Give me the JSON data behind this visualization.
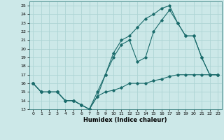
{
  "xlabel": "Humidex (Indice chaleur)",
  "xlim": [
    -0.5,
    23.5
  ],
  "ylim": [
    13,
    25.5
  ],
  "yticks": [
    13,
    14,
    15,
    16,
    17,
    18,
    19,
    20,
    21,
    22,
    23,
    24,
    25
  ],
  "xticks": [
    0,
    1,
    2,
    3,
    4,
    5,
    6,
    7,
    8,
    9,
    10,
    11,
    12,
    13,
    14,
    15,
    16,
    17,
    18,
    19,
    20,
    21,
    22,
    23
  ],
  "bg_color": "#cce8e8",
  "grid_color": "#aed4d4",
  "line_color": "#1a6b6b",
  "line1_x": [
    0,
    1,
    2,
    3,
    4,
    5,
    6,
    7,
    8,
    9,
    10,
    11,
    12,
    13,
    14,
    15,
    16,
    17,
    18,
    19,
    20,
    21,
    22,
    23
  ],
  "line1_y": [
    16,
    15,
    15,
    15,
    14,
    14,
    13.5,
    13,
    15,
    17,
    19.5,
    21,
    21.5,
    22.5,
    23.5,
    24,
    24.7,
    25,
    23,
    21.5,
    21.5,
    19,
    17,
    17
  ],
  "line2_x": [
    0,
    1,
    2,
    3,
    4,
    5,
    6,
    7,
    8,
    9,
    10,
    11,
    12,
    13,
    14,
    15,
    16,
    17,
    18,
    19,
    20,
    21,
    22,
    23
  ],
  "line2_y": [
    16,
    15,
    15,
    15,
    14,
    14,
    13.5,
    13,
    14.5,
    17,
    19,
    20.5,
    21,
    18.5,
    19,
    22,
    23.3,
    24.5,
    23,
    21.5,
    21.5,
    19,
    17,
    17
  ],
  "line3_x": [
    0,
    1,
    2,
    3,
    4,
    5,
    6,
    7,
    8,
    9,
    10,
    11,
    12,
    13,
    14,
    15,
    16,
    17,
    18,
    19,
    20,
    21,
    22,
    23
  ],
  "line3_y": [
    16,
    15,
    15,
    15,
    14,
    14,
    13.5,
    13,
    14.5,
    15,
    15.2,
    15.5,
    16,
    16,
    16,
    16.3,
    16.5,
    16.8,
    17,
    17,
    17,
    17,
    17,
    17
  ]
}
